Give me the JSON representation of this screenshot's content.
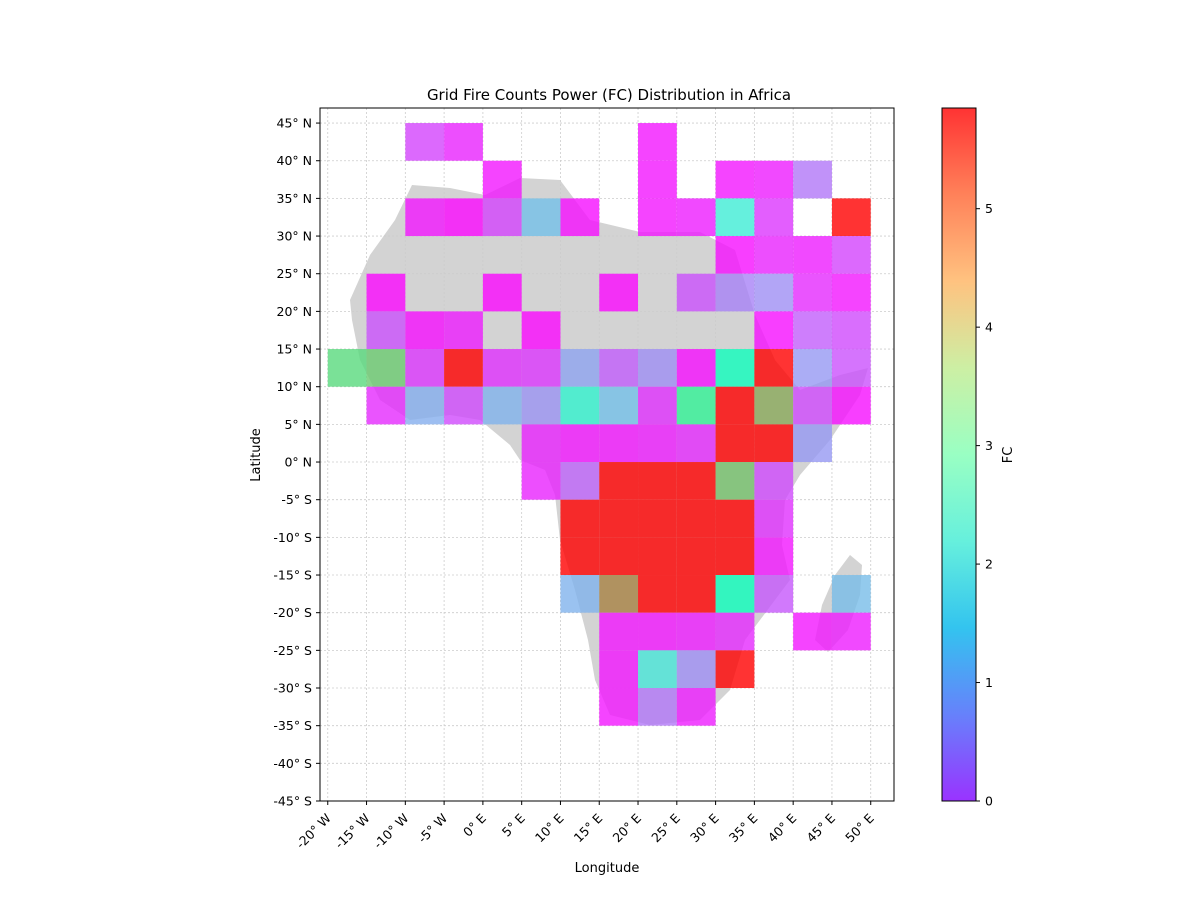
{
  "chart_data": {
    "type": "heatmap",
    "title": "Grid Fire Counts Power (FC) Distribution in Africa",
    "xlabel": "Longitude",
    "ylabel": "Latitude",
    "colorbar_label": "FC",
    "colormap": "rainbow",
    "xlim": [
      -21,
      53
    ],
    "ylim": [
      -45,
      47
    ],
    "vlim": [
      0,
      5.85
    ],
    "cell_size_deg": 5,
    "grid": true,
    "x_ticks": [
      -20,
      -15,
      -10,
      -5,
      0,
      5,
      10,
      15,
      20,
      25,
      30,
      35,
      40,
      45,
      50
    ],
    "x_tick_labels": [
      "-20$^\\circ$W",
      "-15$^\\circ$W",
      "-10$^\\circ$W",
      "-5$^\\circ$W",
      "0$^\\circ$E",
      "5$^\\circ$E",
      "10$^\\circ$E",
      "15$^\\circ$E",
      "20$^\\circ$E",
      "25$^\\circ$E",
      "30$^\\circ$E",
      "35$^\\circ$E",
      "40$^\\circ$E",
      "45$^\\circ$E",
      "50$^\\circ$E"
    ],
    "y_ticks": [
      45,
      40,
      35,
      30,
      25,
      20,
      15,
      10,
      5,
      0,
      -5,
      -10,
      -15,
      -20,
      -25,
      -30,
      -35,
      -40,
      -45
    ],
    "y_tick_labels": [
      "45$^\\circ$N",
      "40$^\\circ$N",
      "35$^\\circ$N",
      "30$^\\circ$N",
      "25$^\\circ$N",
      "20$^\\circ$N",
      "15$^\\circ$N",
      "10$^\\circ$N",
      "5$^\\circ$N",
      "0$^\\circ$N",
      "-5$^\\circ$S",
      "-10$^\\circ$S",
      "-15$^\\circ$S",
      "-20$^\\circ$S",
      "-25$^\\circ$S",
      "-30$^\\circ$S",
      "-35$^\\circ$S",
      "-40$^\\circ$S",
      "-45$^\\circ$S"
    ],
    "colorbar_ticks": [
      0,
      1,
      2,
      3,
      4,
      5
    ],
    "cells_columns": [
      "lon_min",
      "lat_min",
      "fc"
    ],
    "cells": [
      [
        -10,
        40,
        0.5
      ],
      [
        -5,
        40,
        0.25
      ],
      [
        20,
        40,
        0.15
      ],
      [
        0,
        35,
        0.15
      ],
      [
        20,
        35,
        0.15
      ],
      [
        30,
        35,
        0.15
      ],
      [
        35,
        35,
        0.2
      ],
      [
        40,
        35,
        0.9
      ],
      [
        -10,
        30,
        0.15
      ],
      [
        -5,
        30,
        0.05
      ],
      [
        0,
        30,
        0.5
      ],
      [
        5,
        30,
        1.6
      ],
      [
        10,
        30,
        0.1
      ],
      [
        20,
        30,
        0.15
      ],
      [
        25,
        30,
        0.2
      ],
      [
        30,
        30,
        2.2
      ],
      [
        35,
        30,
        0.4
      ],
      [
        45,
        30,
        5.85
      ],
      [
        30,
        25,
        0.1
      ],
      [
        35,
        25,
        0.25
      ],
      [
        40,
        25,
        0.2
      ],
      [
        45,
        25,
        0.5
      ],
      [
        -15,
        20,
        0.05
      ],
      [
        0,
        20,
        0.05
      ],
      [
        15,
        20,
        0.05
      ],
      [
        25,
        20,
        0.6
      ],
      [
        30,
        20,
        1.0
      ],
      [
        35,
        20,
        1.1
      ],
      [
        40,
        20,
        0.3
      ],
      [
        45,
        20,
        0.15
      ],
      [
        -15,
        15,
        0.6
      ],
      [
        -10,
        15,
        0.1
      ],
      [
        -5,
        15,
        0.2
      ],
      [
        5,
        15,
        0.05
      ],
      [
        35,
        15,
        0.1
      ],
      [
        40,
        15,
        0.7
      ],
      [
        45,
        15,
        0.55
      ],
      [
        -20,
        10,
        3.95
      ],
      [
        -15,
        10,
        4.15
      ],
      [
        -10,
        10,
        0.4
      ],
      [
        -5,
        10,
        5.85
      ],
      [
        0,
        10,
        0.35
      ],
      [
        5,
        10,
        0.4
      ],
      [
        10,
        10,
        1.3
      ],
      [
        15,
        10,
        0.7
      ],
      [
        20,
        10,
        1.1
      ],
      [
        25,
        10,
        0.1
      ],
      [
        30,
        10,
        2.75
      ],
      [
        35,
        10,
        5.85
      ],
      [
        40,
        10,
        1.2
      ],
      [
        45,
        10,
        0.6
      ],
      [
        -15,
        5,
        0.3
      ],
      [
        -10,
        5,
        1.4
      ],
      [
        -5,
        5,
        0.55
      ],
      [
        0,
        5,
        1.45
      ],
      [
        5,
        5,
        1.15
      ],
      [
        10,
        5,
        2.35
      ],
      [
        15,
        5,
        1.6
      ],
      [
        20,
        5,
        0.35
      ],
      [
        25,
        5,
        3.5
      ],
      [
        30,
        5,
        5.85
      ],
      [
        35,
        5,
        4.5
      ],
      [
        40,
        5,
        0.55
      ],
      [
        45,
        5,
        0.1
      ],
      [
        5,
        0,
        0.25
      ],
      [
        10,
        0,
        0.15
      ],
      [
        15,
        0,
        0.15
      ],
      [
        20,
        0,
        0.2
      ],
      [
        25,
        0,
        0.3
      ],
      [
        30,
        0,
        5.85
      ],
      [
        35,
        0,
        5.85
      ],
      [
        40,
        0,
        1.2
      ],
      [
        5,
        -5,
        0.25
      ],
      [
        10,
        -5,
        0.75
      ],
      [
        15,
        -5,
        5.85
      ],
      [
        20,
        -5,
        5.85
      ],
      [
        25,
        -5,
        5.85
      ],
      [
        30,
        -5,
        4.25
      ],
      [
        35,
        -5,
        0.55
      ],
      [
        10,
        -10,
        5.85
      ],
      [
        15,
        -10,
        5.85
      ],
      [
        20,
        -10,
        5.85
      ],
      [
        25,
        -10,
        5.85
      ],
      [
        30,
        -10,
        5.85
      ],
      [
        35,
        -10,
        0.35
      ],
      [
        10,
        -15,
        5.85
      ],
      [
        15,
        -15,
        5.85
      ],
      [
        20,
        -15,
        5.85
      ],
      [
        25,
        -15,
        5.85
      ],
      [
        30,
        -15,
        5.85
      ],
      [
        35,
        -15,
        0.15
      ],
      [
        10,
        -20,
        1.45
      ],
      [
        15,
        -20,
        4.85
      ],
      [
        20,
        -20,
        5.85
      ],
      [
        25,
        -20,
        5.85
      ],
      [
        30,
        -20,
        2.8
      ],
      [
        35,
        -20,
        0.65
      ],
      [
        45,
        -20,
        1.55
      ],
      [
        15,
        -25,
        0.15
      ],
      [
        20,
        -25,
        0.15
      ],
      [
        25,
        -25,
        0.2
      ],
      [
        30,
        -25,
        0.3
      ],
      [
        40,
        -25,
        0.15
      ],
      [
        45,
        -25,
        0.2
      ],
      [
        15,
        -30,
        0.15
      ],
      [
        20,
        -30,
        2.1
      ],
      [
        25,
        -30,
        1.1
      ],
      [
        30,
        -30,
        5.85
      ],
      [
        15,
        -35,
        0.15
      ],
      [
        20,
        -35,
        0.9
      ],
      [
        25,
        -35,
        0.2
      ]
    ]
  }
}
